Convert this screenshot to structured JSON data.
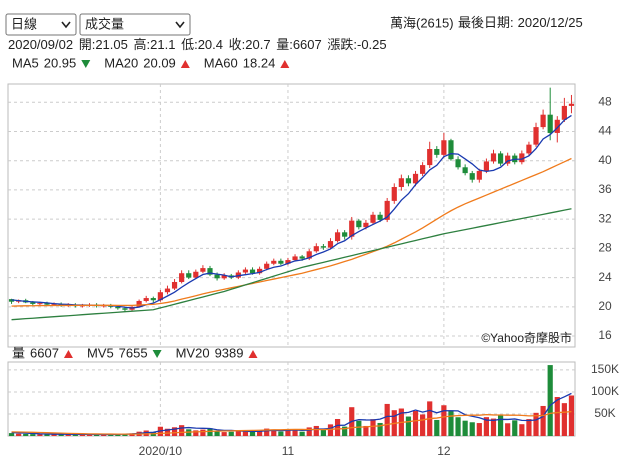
{
  "header": {
    "period": "日線",
    "indicator": "成交量",
    "stock": "萬海(2615)",
    "last_date_label": "最後日期:",
    "last_date": "2020/12/25",
    "hover_date": "2020/09/02",
    "ohlc_labels": [
      "開:",
      "高:",
      "低:",
      "收:",
      "量:"
    ],
    "change_label": "漲跌:",
    "change": -0.25
  },
  "chart_data": [
    {
      "type": "candlestick",
      "open": [
        21.05,
        20.7,
        20.9,
        20.6,
        20.4,
        20.5,
        20.3,
        20.4,
        20.2,
        20.3,
        20.1,
        20.2,
        20.3,
        20.1,
        20.2,
        20.0,
        19.8,
        19.6,
        20.0,
        20.8,
        21.2,
        20.9,
        22.0,
        22.5,
        23.4,
        24.6,
        24.0,
        24.8,
        25.3,
        24.4,
        23.9,
        24.3,
        24.0,
        24.7,
        25.1,
        24.6,
        25.2,
        25.9,
        26.3,
        25.9,
        26.4,
        26.9,
        26.6,
        27.6,
        28.3,
        28.1,
        29.0,
        30.2,
        29.6,
        31.8,
        30.9,
        31.5,
        32.6,
        31.9,
        34.5,
        36.4,
        37.6,
        36.9,
        38.2,
        39.4,
        41.6,
        40.8,
        42.8,
        40.2,
        39.1,
        38.3,
        37.4,
        38.6,
        39.9,
        41.0,
        39.6,
        40.7,
        39.8,
        41.0,
        42.2,
        44.6,
        46.3,
        43.8,
        45.6,
        47.5
      ],
      "high": [
        21.1,
        21.0,
        21.1,
        20.8,
        20.7,
        20.7,
        20.6,
        20.6,
        20.5,
        20.5,
        20.4,
        20.5,
        20.5,
        20.4,
        20.4,
        20.2,
        20.0,
        20.2,
        21.0,
        21.5,
        21.4,
        22.3,
        22.9,
        23.8,
        25.0,
        25.0,
        25.1,
        25.7,
        25.6,
        24.7,
        24.6,
        24.5,
        25.0,
        25.4,
        25.4,
        25.5,
        26.2,
        26.6,
        26.6,
        26.7,
        27.2,
        27.1,
        27.9,
        28.7,
        28.6,
        29.4,
        30.6,
        30.5,
        32.3,
        32.0,
        31.9,
        33.0,
        33.0,
        34.9,
        36.9,
        38.1,
        38.0,
        38.6,
        39.8,
        42.6,
        42.0,
        43.8,
        43.0,
        40.6,
        39.5,
        38.6,
        38.9,
        40.3,
        41.5,
        41.3,
        41.1,
        41.0,
        41.4,
        42.6,
        45.2,
        47.0,
        50.0,
        46.1,
        48.6,
        49.0
      ],
      "low": [
        20.4,
        20.5,
        20.5,
        20.2,
        20.2,
        20.1,
        20.1,
        20.0,
        20.0,
        19.9,
        19.9,
        20.0,
        19.9,
        19.9,
        19.8,
        19.6,
        19.3,
        19.4,
        19.9,
        20.6,
        20.6,
        20.7,
        21.7,
        22.3,
        23.2,
        23.8,
        23.8,
        24.6,
        24.2,
        23.6,
        23.7,
        23.8,
        23.8,
        24.5,
        24.4,
        24.4,
        25.0,
        25.7,
        25.7,
        25.7,
        26.2,
        26.3,
        26.4,
        27.4,
        27.8,
        27.9,
        28.8,
        29.2,
        29.2,
        30.6,
        30.6,
        31.2,
        31.6,
        31.6,
        34.1,
        35.9,
        36.5,
        36.5,
        37.9,
        39.0,
        40.4,
        40.4,
        40.0,
        38.8,
        38.0,
        37.0,
        37.0,
        38.3,
        39.6,
        39.3,
        39.3,
        39.5,
        39.5,
        40.7,
        41.9,
        44.3,
        42.8,
        42.5,
        45.3,
        46.5
      ],
      "close": [
        20.7,
        20.9,
        20.6,
        20.4,
        20.5,
        20.3,
        20.4,
        20.2,
        20.3,
        20.1,
        20.2,
        20.3,
        20.1,
        20.2,
        20.0,
        19.8,
        19.6,
        20.0,
        20.8,
        21.2,
        20.9,
        22.0,
        22.5,
        23.4,
        24.6,
        24.0,
        24.8,
        25.3,
        24.4,
        23.9,
        24.3,
        24.0,
        24.7,
        25.1,
        24.6,
        25.2,
        25.9,
        26.3,
        25.9,
        26.4,
        26.9,
        26.6,
        27.6,
        28.3,
        28.1,
        29.0,
        30.2,
        29.6,
        31.8,
        30.9,
        31.5,
        32.6,
        31.9,
        34.5,
        36.4,
        37.6,
        36.9,
        38.2,
        39.4,
        41.6,
        40.8,
        42.8,
        40.2,
        39.1,
        38.3,
        37.4,
        38.6,
        39.9,
        41.0,
        39.6,
        40.7,
        39.8,
        41.0,
        42.2,
        44.6,
        46.3,
        43.8,
        45.6,
        47.5,
        47.8
      ],
      "up_color": "#e0302f",
      "down_color": "#1e8c3a",
      "series": [
        {
          "name": "MA5",
          "color": "#1a3ab0",
          "trend": "down",
          "values": [
            20.95,
            20.85,
            20.75,
            20.68,
            20.62,
            20.54,
            20.44,
            20.36,
            20.34,
            20.26,
            20.24,
            20.22,
            20.2,
            20.2,
            20.16,
            20.08,
            19.94,
            19.84,
            19.96,
            20.28,
            20.5,
            20.98,
            21.48,
            22.0,
            22.68,
            23.3,
            23.86,
            24.42,
            24.62,
            24.48,
            24.34,
            24.1,
            24.26,
            24.4,
            24.54,
            24.72,
            25.1,
            25.42,
            25.58,
            25.94,
            26.28,
            26.42,
            26.72,
            27.16,
            27.5,
            27.92,
            28.64,
            29.04,
            29.74,
            30.3,
            30.8,
            31.28,
            31.74,
            32.28,
            33.38,
            34.6,
            35.48,
            36.72,
            37.7,
            38.74,
            39.38,
            40.56,
            40.96,
            40.9,
            40.24,
            39.56,
            38.72,
            38.54,
            38.68,
            39.1,
            39.96,
            40.2,
            40.22,
            40.66,
            41.66,
            42.98,
            43.58,
            44.5,
            45.56,
            46.2
          ]
        },
        {
          "name": "MA20",
          "color": "#f07b1c",
          "trend": "up",
          "values": [
            20.09,
            20.12,
            20.14,
            20.15,
            20.16,
            20.17,
            20.18,
            20.19,
            20.19,
            20.2,
            20.2,
            20.21,
            20.21,
            20.21,
            20.21,
            20.2,
            20.19,
            20.2,
            20.24,
            20.3,
            20.34,
            20.45,
            20.6,
            20.8,
            21.05,
            21.28,
            21.52,
            21.78,
            22.0,
            22.2,
            22.4,
            22.6,
            22.8,
            23.0,
            23.2,
            23.4,
            23.6,
            23.8,
            24.0,
            24.2,
            24.4,
            24.6,
            24.85,
            25.1,
            25.35,
            25.6,
            25.9,
            26.2,
            26.5,
            26.85,
            27.2,
            27.55,
            27.9,
            28.3,
            28.75,
            29.25,
            29.75,
            30.25,
            30.8,
            31.4,
            32.0,
            32.6,
            33.15,
            33.65,
            34.1,
            34.5,
            34.9,
            35.3,
            35.7,
            36.1,
            36.5,
            36.9,
            37.3,
            37.7,
            38.1,
            38.5,
            38.95,
            39.4,
            39.85,
            40.3
          ]
        },
        {
          "name": "MA60",
          "color": "#2e8040",
          "trend": "up",
          "values": [
            18.24,
            18.31,
            18.38,
            18.44,
            18.51,
            18.58,
            18.65,
            18.72,
            18.78,
            18.85,
            18.92,
            18.99,
            19.06,
            19.12,
            19.19,
            19.26,
            19.33,
            19.4,
            19.46,
            19.53,
            19.6,
            19.85,
            20.1,
            20.35,
            20.6,
            20.85,
            21.1,
            21.35,
            21.6,
            21.85,
            22.1,
            22.4,
            22.7,
            23.0,
            23.3,
            23.6,
            23.9,
            24.2,
            24.5,
            24.8,
            25.1,
            25.4,
            25.63,
            25.86,
            26.09,
            26.32,
            26.55,
            26.78,
            27.01,
            27.24,
            27.47,
            27.7,
            27.93,
            28.16,
            28.39,
            28.62,
            28.85,
            29.08,
            29.31,
            29.54,
            29.77,
            30.0,
            30.19,
            30.38,
            30.57,
            30.76,
            30.95,
            31.14,
            31.33,
            31.52,
            31.71,
            31.9,
            32.09,
            32.28,
            32.47,
            32.66,
            32.85,
            33.04,
            33.23,
            33.42
          ]
        }
      ],
      "ylim": [
        14.5,
        50.5
      ],
      "yticks": [
        16,
        20,
        24,
        28,
        32,
        36,
        40,
        44,
        48
      ],
      "grid": true,
      "watermark": "©Yahoo奇摩股市"
    },
    {
      "type": "bar",
      "name": "量",
      "trend": "up",
      "categories": [
        null,
        null,
        null,
        null,
        null,
        null,
        null,
        null,
        null,
        null,
        null,
        null,
        null,
        null,
        null,
        null,
        null,
        null,
        null,
        null,
        null,
        "2020/10",
        null,
        null,
        null,
        null,
        null,
        null,
        null,
        null,
        null,
        null,
        null,
        null,
        null,
        null,
        null,
        null,
        null,
        "11",
        null,
        null,
        null,
        null,
        null,
        null,
        null,
        null,
        null,
        null,
        null,
        null,
        null,
        null,
        null,
        null,
        null,
        null,
        null,
        null,
        null,
        "12",
        null,
        null,
        null,
        null,
        null,
        null,
        null,
        null,
        null,
        null,
        null,
        null,
        null,
        null,
        null,
        null,
        null,
        null
      ],
      "values": [
        6607,
        5200,
        4800,
        4300,
        3900,
        4100,
        3600,
        3800,
        4500,
        3200,
        3500,
        3000,
        3300,
        4000,
        3700,
        4200,
        5600,
        6100,
        9800,
        12500,
        8200,
        21000,
        16500,
        19800,
        24600,
        15200,
        12800,
        14500,
        17600,
        10300,
        8900,
        9600,
        12200,
        11800,
        9400,
        10800,
        16800,
        14900,
        10200,
        12600,
        14100,
        9800,
        19500,
        22800,
        13600,
        26400,
        38600,
        21300,
        65400,
        34500,
        22800,
        38200,
        29600,
        72800,
        58600,
        62400,
        44200,
        56800,
        48900,
        78600,
        36400,
        69800,
        58200,
        42600,
        34800,
        31200,
        29400,
        42800,
        39600,
        46500,
        28900,
        35600,
        26800,
        38400,
        52600,
        68200,
        161000,
        88500,
        74600,
        92000
      ],
      "series": [
        {
          "name": "MV5",
          "color": "#1a3ab0",
          "trend": "down",
          "values": [
            7655,
            7100,
            6500,
            5800,
            5000,
            4600,
            4100,
            4100,
            4000,
            3800,
            3700,
            3600,
            3500,
            3500,
            3500,
            3600,
            4200,
            4700,
            5900,
            7600,
            8400,
            11600,
            13600,
            15600,
            18100,
            19200,
            17800,
            17500,
            17000,
            14100,
            12800,
            12600,
            11700,
            10600,
            10400,
            10600,
            12100,
            12700,
            12400,
            12900,
            13700,
            12700,
            13400,
            15800,
            15900,
            17200,
            24200,
            24500,
            33100,
            37200,
            36500,
            36400,
            38300,
            44600,
            44800,
            52300,
            53600,
            59000,
            54200,
            58100,
            52700,
            57300,
            57400,
            57100,
            48300,
            44800,
            41400,
            36200,
            35500,
            37900,
            37600,
            38700,
            35500,
            35200,
            36400,
            44300,
            69500,
            81900,
            89000,
            96800
          ]
        },
        {
          "name": "MV20",
          "color": "#f07b1c",
          "trend": "up",
          "values": [
            9389,
            9100,
            8800,
            8400,
            8000,
            7500,
            7000,
            6500,
            6000,
            5600,
            5200,
            4900,
            4700,
            4500,
            4400,
            4300,
            4300,
            4300,
            4500,
            4900,
            5100,
            5900,
            6500,
            7300,
            8300,
            8900,
            9400,
            10000,
            10700,
            11000,
            11300,
            11600,
            12000,
            12400,
            12700,
            13000,
            13600,
            14000,
            14200,
            14600,
            14900,
            14900,
            14800,
            14800,
            14500,
            15200,
            16300,
            16600,
            19000,
            20100,
            20700,
            22100,
            23000,
            26100,
            28500,
            31000,
            32500,
            34700,
            36500,
            39600,
            40700,
            43500,
            45300,
            46300,
            46800,
            47200,
            47300,
            48500,
            47800,
            47700,
            47300,
            47400,
            46800,
            45600,
            45900,
            46400,
            51400,
            53200,
            54000,
            55500
          ]
        }
      ],
      "ylim": [
        0,
        168000
      ],
      "yticks": [
        {
          "value": 50000,
          "label": "50K"
        },
        {
          "value": 100000,
          "label": "100K"
        },
        {
          "value": 150000,
          "label": "150K"
        }
      ],
      "grid": true
    }
  ]
}
